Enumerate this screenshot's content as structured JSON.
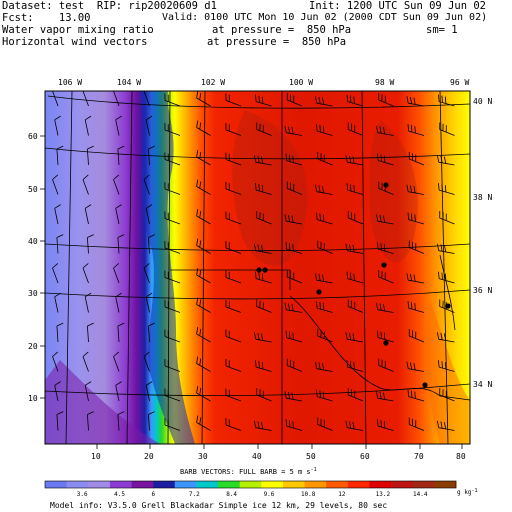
{
  "header": {
    "line1_left": "Dataset: test  RIP: rip20020609 d1",
    "line1_right": "Init: 1200 UTC Sun 09 Jun 02",
    "line2_left": "Fcst:    13.00",
    "line2_right": "Valid: 0100 UTC Mon 10 Jun 02 (2000 CDT Sun 09 Jun 02)",
    "line3_left": "Water vapor mixing ratio",
    "line3_mid": "at pressure =  850 hPa",
    "line3_right": "sm= 1",
    "line4_left": "Horizontal wind vectors",
    "line4_mid": "at pressure =  850 hPa"
  },
  "map": {
    "top_lon_labels": [
      "106 W",
      "104 W",
      "102 W",
      "100 W",
      "98 W",
      "96 W"
    ],
    "right_lat_labels": [
      "40 N",
      "38 N",
      "36 N",
      "34 N"
    ],
    "x_grid_labels": [
      "10",
      "20",
      "30",
      "40",
      "50",
      "60",
      "70",
      "80"
    ],
    "y_grid_labels": [
      "10",
      "20",
      "30",
      "40",
      "50",
      "60"
    ]
  },
  "barb_caption": "BARB VECTORS:  FULL BARB = 5 m s",
  "barb_caption_sup": "-1",
  "colorbar": {
    "labels": [
      "3.6",
      "4.5",
      "6",
      "7.2",
      "8.4",
      "9.6",
      "10.8",
      "12",
      "13.2",
      "14.4"
    ],
    "unit": "g kg",
    "unit_sup": "-1",
    "colors": [
      "#6c78f0",
      "#8c8cf0",
      "#a08ce6",
      "#8c3cd2",
      "#7814a0",
      "#1e1ea0",
      "#3c96ff",
      "#00c8c8",
      "#28dc28",
      "#b4f000",
      "#ffff00",
      "#ffc800",
      "#ff9600",
      "#ff5a00",
      "#ff2800",
      "#dc0000",
      "#be1414",
      "#a02814",
      "#8c3c00"
    ]
  },
  "footer": "Model info: V3.5.0  Grell     Blackadar  Simple ice   12 km,  29 levels,   80 sec"
}
